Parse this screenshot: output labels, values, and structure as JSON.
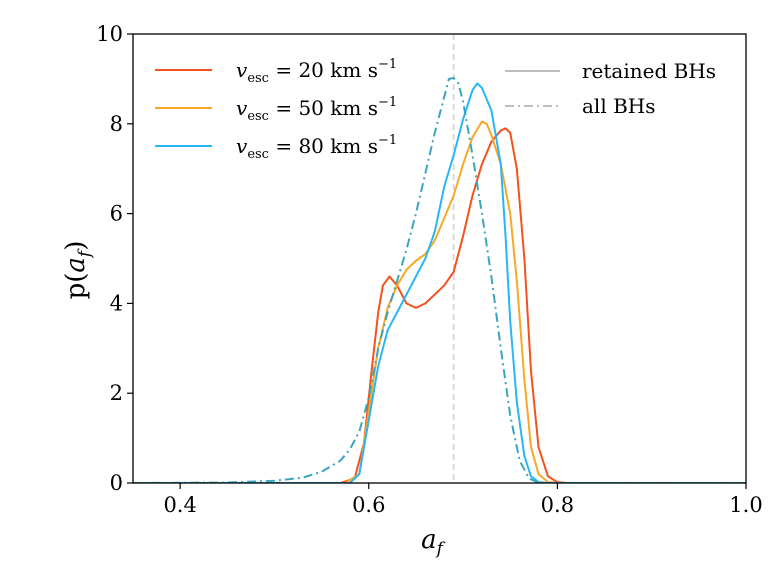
{
  "chart_data": {
    "type": "line",
    "title": "",
    "xlabel": "a_f",
    "ylabel": "p(a_f)",
    "xlim": [
      0.35,
      1.0
    ],
    "ylim": [
      0,
      10
    ],
    "xticks": [
      0.4,
      0.6,
      0.8,
      1.0
    ],
    "xtick_labels": [
      "0.4",
      "0.6",
      "0.8",
      "1.0"
    ],
    "yticks": [
      0,
      2,
      4,
      6,
      8,
      10
    ],
    "ytick_labels": [
      "0",
      "2",
      "4",
      "6",
      "8",
      "10"
    ],
    "grid": false,
    "legend_left_position": "top-left",
    "legend_right_position": "top-right",
    "reference_line": {
      "x": 0.69,
      "style": "dashed",
      "color": "#d3d3d3"
    },
    "series": [
      {
        "name": "v_esc = 20 km s^-1",
        "color": "#f4511e",
        "style": "solid",
        "points": [
          [
            0.35,
            0
          ],
          [
            0.57,
            0
          ],
          [
            0.585,
            0.1
          ],
          [
            0.595,
            0.9
          ],
          [
            0.603,
            2.5
          ],
          [
            0.61,
            3.8
          ],
          [
            0.615,
            4.4
          ],
          [
            0.622,
            4.6
          ],
          [
            0.63,
            4.4
          ],
          [
            0.64,
            4.0
          ],
          [
            0.65,
            3.9
          ],
          [
            0.66,
            4.0
          ],
          [
            0.67,
            4.2
          ],
          [
            0.68,
            4.4
          ],
          [
            0.69,
            4.7
          ],
          [
            0.7,
            5.5
          ],
          [
            0.71,
            6.4
          ],
          [
            0.72,
            7.1
          ],
          [
            0.73,
            7.6
          ],
          [
            0.74,
            7.85
          ],
          [
            0.745,
            7.9
          ],
          [
            0.75,
            7.8
          ],
          [
            0.757,
            7.0
          ],
          [
            0.765,
            5.0
          ],
          [
            0.772,
            2.5
          ],
          [
            0.78,
            0.8
          ],
          [
            0.79,
            0.15
          ],
          [
            0.8,
            0.02
          ],
          [
            0.81,
            0
          ],
          [
            1.0,
            0
          ]
        ]
      },
      {
        "name": "v_esc = 50 km s^-1",
        "color": "#f9a825",
        "style": "solid",
        "points": [
          [
            0.35,
            0
          ],
          [
            0.575,
            0
          ],
          [
            0.59,
            0.2
          ],
          [
            0.6,
            1.6
          ],
          [
            0.61,
            3.0
          ],
          [
            0.62,
            3.9
          ],
          [
            0.63,
            4.4
          ],
          [
            0.64,
            4.75
          ],
          [
            0.65,
            4.95
          ],
          [
            0.66,
            5.1
          ],
          [
            0.67,
            5.4
          ],
          [
            0.68,
            5.9
          ],
          [
            0.69,
            6.4
          ],
          [
            0.7,
            7.1
          ],
          [
            0.71,
            7.7
          ],
          [
            0.72,
            8.05
          ],
          [
            0.725,
            8.0
          ],
          [
            0.73,
            7.75
          ],
          [
            0.74,
            7.1
          ],
          [
            0.75,
            6.0
          ],
          [
            0.757,
            4.5
          ],
          [
            0.765,
            2.3
          ],
          [
            0.772,
            0.8
          ],
          [
            0.78,
            0.2
          ],
          [
            0.79,
            0.02
          ],
          [
            0.8,
            0
          ],
          [
            1.0,
            0
          ]
        ]
      },
      {
        "name": "v_esc = 80 km s^-1",
        "color": "#29b6f6",
        "style": "solid",
        "points": [
          [
            0.35,
            0
          ],
          [
            0.58,
            0
          ],
          [
            0.59,
            0.2
          ],
          [
            0.6,
            1.4
          ],
          [
            0.61,
            2.6
          ],
          [
            0.62,
            3.4
          ],
          [
            0.63,
            3.8
          ],
          [
            0.64,
            4.2
          ],
          [
            0.65,
            4.6
          ],
          [
            0.66,
            5.0
          ],
          [
            0.67,
            5.6
          ],
          [
            0.68,
            6.6
          ],
          [
            0.69,
            7.3
          ],
          [
            0.7,
            8.1
          ],
          [
            0.71,
            8.75
          ],
          [
            0.715,
            8.9
          ],
          [
            0.72,
            8.8
          ],
          [
            0.73,
            8.3
          ],
          [
            0.74,
            7.1
          ],
          [
            0.745,
            5.5
          ],
          [
            0.75,
            3.6
          ],
          [
            0.757,
            1.8
          ],
          [
            0.765,
            0.6
          ],
          [
            0.772,
            0.15
          ],
          [
            0.78,
            0.02
          ],
          [
            0.79,
            0
          ],
          [
            1.0,
            0
          ]
        ]
      },
      {
        "name": "all BHs",
        "color": "#3aa6bd",
        "style": "dashdot",
        "points": [
          [
            0.35,
            0
          ],
          [
            0.45,
            0.01
          ],
          [
            0.5,
            0.05
          ],
          [
            0.53,
            0.12
          ],
          [
            0.55,
            0.25
          ],
          [
            0.57,
            0.5
          ],
          [
            0.58,
            0.75
          ],
          [
            0.59,
            1.15
          ],
          [
            0.6,
            1.9
          ],
          [
            0.61,
            3.0
          ],
          [
            0.62,
            3.8
          ],
          [
            0.63,
            4.5
          ],
          [
            0.64,
            5.2
          ],
          [
            0.65,
            6.0
          ],
          [
            0.66,
            6.9
          ],
          [
            0.67,
            7.8
          ],
          [
            0.68,
            8.6
          ],
          [
            0.685,
            9.0
          ],
          [
            0.69,
            9.02
          ],
          [
            0.695,
            8.9
          ],
          [
            0.7,
            8.5
          ],
          [
            0.71,
            7.3
          ],
          [
            0.72,
            6.0
          ],
          [
            0.73,
            4.6
          ],
          [
            0.74,
            3.0
          ],
          [
            0.75,
            1.5
          ],
          [
            0.76,
            0.5
          ],
          [
            0.77,
            0.1
          ],
          [
            0.78,
            0.01
          ],
          [
            0.8,
            0
          ],
          [
            1.0,
            0
          ]
        ]
      }
    ]
  },
  "legend_left": [
    {
      "var": "v",
      "sub": "esc",
      "text": " = 20 km s",
      "sup": "−1",
      "color": "#f4511e"
    },
    {
      "var": "v",
      "sub": "esc",
      "text": " = 50 km s",
      "sup": "−1",
      "color": "#f9a825"
    },
    {
      "var": "v",
      "sub": "esc",
      "text": " = 80 km s",
      "sup": "−1",
      "color": "#29b6f6"
    }
  ],
  "legend_right": [
    {
      "label": "retained BHs",
      "color": "#bdbdbd",
      "style": "solid"
    },
    {
      "label": "all BHs",
      "color": "#bdbdbd",
      "style": "dashdot"
    }
  ],
  "axis_text": {
    "xlabel_main": "a",
    "xlabel_sub": "f",
    "ylabel_pre": "p(",
    "ylabel_var": "a",
    "ylabel_sub": "f",
    "ylabel_post": ")"
  }
}
